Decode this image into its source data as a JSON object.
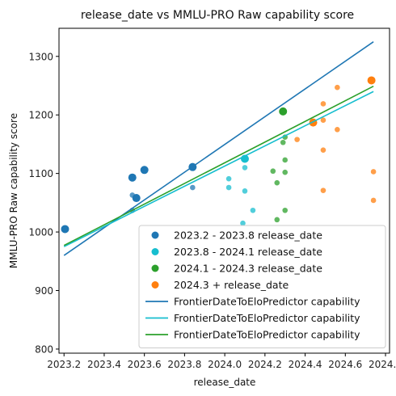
{
  "chart_data": {
    "type": "scatter",
    "title": "release_date vs MMLU-PRO Raw capability score",
    "xlabel": "release_date",
    "ylabel": "MMLU-PRO Raw capability score",
    "xlim": [
      2023.175,
      2024.82
    ],
    "ylim": [
      793,
      1348
    ],
    "xticks": [
      2023.2,
      2023.4,
      2023.6,
      2023.8,
      2024.0,
      2024.2,
      2024.4,
      2024.6,
      2024.8
    ],
    "xtick_labels": [
      "2023.2",
      "2023.4",
      "2023.6",
      "2023.8",
      "2024.0",
      "2024.2",
      "2024.4",
      "2024.6",
      "2024.8"
    ],
    "yticks": [
      800,
      900,
      1000,
      1100,
      1200,
      1300
    ],
    "ytick_labels": [
      "800",
      "900",
      "1000",
      "1100",
      "1200",
      "1300"
    ],
    "grid": false,
    "legend_position": "lower-right",
    "scatter_series": [
      {
        "name": "2023.2 - 2023.8 release_date",
        "color": "#1f77b4",
        "points": [
          {
            "x": 2023.205,
            "y": 1005,
            "frontier": true
          },
          {
            "x": 2023.54,
            "y": 1093,
            "frontier": true
          },
          {
            "x": 2023.6,
            "y": 1106,
            "frontier": true
          },
          {
            "x": 2023.84,
            "y": 1111,
            "frontier": true
          },
          {
            "x": 2023.56,
            "y": 1058,
            "frontier": true
          },
          {
            "x": 2023.54,
            "y": 1063,
            "frontier": false
          },
          {
            "x": 2023.54,
            "y": 1037,
            "frontier": false
          },
          {
            "x": 2023.84,
            "y": 1076,
            "frontier": false
          }
        ]
      },
      {
        "name": "2023.8 - 2024.1 release_date",
        "color": "#17becf",
        "points": [
          {
            "x": 2024.1,
            "y": 1125,
            "frontier": true
          },
          {
            "x": 2024.1,
            "y": 1110,
            "frontier": false
          },
          {
            "x": 2024.02,
            "y": 1091,
            "frontier": false
          },
          {
            "x": 2024.02,
            "y": 1076,
            "frontier": false
          },
          {
            "x": 2024.1,
            "y": 1070,
            "frontier": false
          },
          {
            "x": 2024.14,
            "y": 1037,
            "frontier": false
          },
          {
            "x": 2024.09,
            "y": 1015,
            "frontier": false
          }
        ]
      },
      {
        "name": "2024.1 - 2024.3 release_date",
        "color": "#2ca02c",
        "points": [
          {
            "x": 2024.29,
            "y": 1206,
            "frontier": true
          },
          {
            "x": 2024.3,
            "y": 1162,
            "frontier": false
          },
          {
            "x": 2024.29,
            "y": 1153,
            "frontier": false
          },
          {
            "x": 2024.3,
            "y": 1123,
            "frontier": false
          },
          {
            "x": 2024.24,
            "y": 1104,
            "frontier": false
          },
          {
            "x": 2024.3,
            "y": 1102,
            "frontier": false
          },
          {
            "x": 2024.26,
            "y": 1084,
            "frontier": false
          },
          {
            "x": 2024.3,
            "y": 1037,
            "frontier": false
          },
          {
            "x": 2024.26,
            "y": 1021,
            "frontier": false
          }
        ]
      },
      {
        "name": "2024.3 + release_date",
        "color": "#ff7f0e",
        "points": [
          {
            "x": 2024.73,
            "y": 1259,
            "frontier": true
          },
          {
            "x": 2024.44,
            "y": 1187,
            "frontier": true
          },
          {
            "x": 2024.56,
            "y": 1247,
            "frontier": false
          },
          {
            "x": 2024.49,
            "y": 1219,
            "frontier": false
          },
          {
            "x": 2024.49,
            "y": 1191,
            "frontier": false
          },
          {
            "x": 2024.56,
            "y": 1175,
            "frontier": false
          },
          {
            "x": 2024.36,
            "y": 1158,
            "frontier": false
          },
          {
            "x": 2024.49,
            "y": 1140,
            "frontier": false
          },
          {
            "x": 2024.74,
            "y": 1103,
            "frontier": false
          },
          {
            "x": 2024.49,
            "y": 1071,
            "frontier": false
          },
          {
            "x": 2024.74,
            "y": 1054,
            "frontier": false
          }
        ]
      }
    ],
    "line_series": [
      {
        "name": "FrontierDateToEloPredictor capability",
        "color": "#1f77b4",
        "x": [
          2023.2,
          2024.74
        ],
        "y": [
          960,
          1325
        ]
      },
      {
        "name": "FrontierDateToEloPredictor capability",
        "color": "#17becf",
        "x": [
          2023.2,
          2024.74
        ],
        "y": [
          975,
          1240
        ]
      },
      {
        "name": "FrontierDateToEloPredictor capability",
        "color": "#2ca02c",
        "x": [
          2023.2,
          2024.74
        ],
        "y": [
          977,
          1249
        ]
      }
    ]
  }
}
